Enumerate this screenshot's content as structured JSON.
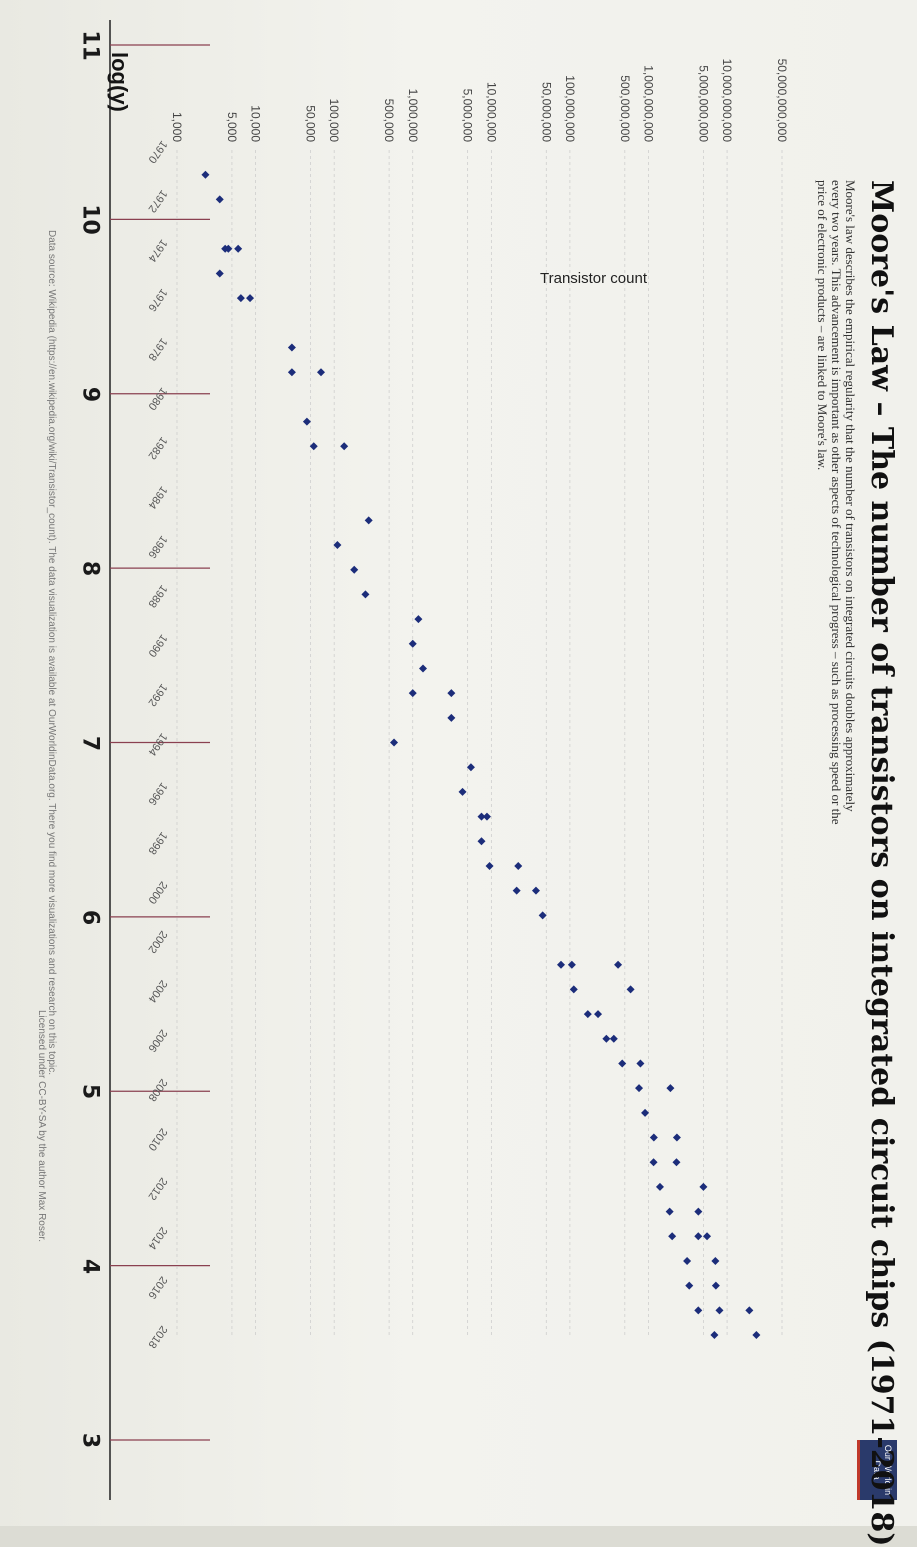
{
  "logscale": {
    "title": "log(y)",
    "ticks": [
      "11",
      "10",
      "9",
      "8",
      "7",
      "6",
      "5",
      "4",
      "3"
    ]
  },
  "header": {
    "owid_logo": "Our World in Data",
    "title": "Moore's Law – The number of transistors on integrated circuit chips (1971-2018)",
    "subtitle": "Moore's law describes the empirical regularity that the number of transistors on integrated circuits doubles approximately every two years. This advancement is important as other aspects of technological progress – such as processing speed or the price of electronic products – are linked to Moore's law."
  },
  "footer": {
    "sources": "Data source: Wikipedia (https://en.wikipedia.org/wiki/Transistor_count). The data visualization is available at OurWorldinData.org. There you find more visualizations and research on this topic.",
    "license": "Licensed under CC-BY-SA by the author Max Roser."
  },
  "colors": {
    "point": "#1c2d7a",
    "grid": "#c9c9c9",
    "logline": "#8a4050"
  },
  "chart_data": {
    "type": "scatter",
    "title": "Moore's Law – The number of transistors on integrated circuit chips (1971-2018)",
    "xlabel": "",
    "ylabel": "Transistor count",
    "log_scale_y": true,
    "ylim": [
      1000,
      50000000000
    ],
    "xlim": [
      1970,
      2018
    ],
    "grid": true,
    "y_ticks": [
      "1,000",
      "5,000",
      "10,000",
      "50,000",
      "100,000",
      "500,000",
      "1,000,000",
      "5,000,000",
      "10,000,000",
      "50,000,000",
      "100,000,000",
      "500,000,000",
      "1,000,000,000",
      "5,000,000,000",
      "10,000,000,000",
      "50,000,000,000"
    ],
    "y_tick_values": [
      1000,
      5000,
      10000,
      50000,
      100000,
      500000,
      1000000,
      5000000,
      10000000,
      50000000,
      100000000,
      500000000,
      1000000000,
      5000000000,
      10000000000,
      50000000000
    ],
    "x_ticks": [
      "1970",
      "1972",
      "1974",
      "1976",
      "1978",
      "1980",
      "1982",
      "1984",
      "1986",
      "1988",
      "1990",
      "1992",
      "1994",
      "1996",
      "1998",
      "2000",
      "2002",
      "2004",
      "2006",
      "2008",
      "2010",
      "2012",
      "2014",
      "2016",
      "2018"
    ],
    "x_tick_values": [
      1970,
      1972,
      1974,
      1976,
      1978,
      1980,
      1982,
      1984,
      1986,
      1988,
      1990,
      1992,
      1994,
      1996,
      1998,
      2000,
      2002,
      2004,
      2006,
      2008,
      2010,
      2012,
      2014,
      2016,
      2018
    ],
    "points": [
      {
        "x": 1971,
        "y": 2300
      },
      {
        "x": 1972,
        "y": 3500
      },
      {
        "x": 1974,
        "y": 4100
      },
      {
        "x": 1974,
        "y": 6000
      },
      {
        "x": 1974,
        "y": 4500
      },
      {
        "x": 1975,
        "y": 3500
      },
      {
        "x": 1976,
        "y": 6500
      },
      {
        "x": 1976,
        "y": 8500
      },
      {
        "x": 1978,
        "y": 29000
      },
      {
        "x": 1979,
        "y": 29000
      },
      {
        "x": 1979,
        "y": 68000
      },
      {
        "x": 1981,
        "y": 45000
      },
      {
        "x": 1982,
        "y": 134000
      },
      {
        "x": 1982,
        "y": 55000
      },
      {
        "x": 1985,
        "y": 275000
      },
      {
        "x": 1986,
        "y": 110000
      },
      {
        "x": 1987,
        "y": 180000
      },
      {
        "x": 1988,
        "y": 250000
      },
      {
        "x": 1989,
        "y": 1180000
      },
      {
        "x": 1990,
        "y": 1000000
      },
      {
        "x": 1991,
        "y": 1350000
      },
      {
        "x": 1992,
        "y": 1000000
      },
      {
        "x": 1992,
        "y": 3100000
      },
      {
        "x": 1993,
        "y": 3100000
      },
      {
        "x": 1994,
        "y": 578000
      },
      {
        "x": 1995,
        "y": 5500000
      },
      {
        "x": 1996,
        "y": 4300000
      },
      {
        "x": 1997,
        "y": 7500000
      },
      {
        "x": 1997,
        "y": 8800000
      },
      {
        "x": 1998,
        "y": 7500000
      },
      {
        "x": 1999,
        "y": 9500000
      },
      {
        "x": 1999,
        "y": 22000000
      },
      {
        "x": 2000,
        "y": 37000000
      },
      {
        "x": 2000,
        "y": 21000000
      },
      {
        "x": 2001,
        "y": 45000000
      },
      {
        "x": 2003,
        "y": 77000000
      },
      {
        "x": 2003,
        "y": 105900000
      },
      {
        "x": 2003,
        "y": 410000000
      },
      {
        "x": 2004,
        "y": 112000000
      },
      {
        "x": 2004,
        "y": 592000000
      },
      {
        "x": 2005,
        "y": 169000000
      },
      {
        "x": 2005,
        "y": 228000000
      },
      {
        "x": 2006,
        "y": 291000000
      },
      {
        "x": 2006,
        "y": 362000000
      },
      {
        "x": 2007,
        "y": 463000000
      },
      {
        "x": 2007,
        "y": 789000000
      },
      {
        "x": 2008,
        "y": 758000000
      },
      {
        "x": 2008,
        "y": 1900000000
      },
      {
        "x": 2009,
        "y": 904000000
      },
      {
        "x": 2010,
        "y": 1170000000
      },
      {
        "x": 2010,
        "y": 2300000000
      },
      {
        "x": 2011,
        "y": 1160000000
      },
      {
        "x": 2011,
        "y": 2270000000
      },
      {
        "x": 2012,
        "y": 1400000000
      },
      {
        "x": 2012,
        "y": 5000000000
      },
      {
        "x": 2013,
        "y": 1860000000
      },
      {
        "x": 2013,
        "y": 4310000000
      },
      {
        "x": 2014,
        "y": 2000000000
      },
      {
        "x": 2014,
        "y": 4300000000
      },
      {
        "x": 2014,
        "y": 5560000000
      },
      {
        "x": 2015,
        "y": 3100000000
      },
      {
        "x": 2015,
        "y": 7100000000
      },
      {
        "x": 2016,
        "y": 3300000000
      },
      {
        "x": 2016,
        "y": 7200000000
      },
      {
        "x": 2017,
        "y": 4300000000
      },
      {
        "x": 2017,
        "y": 19200000000
      },
      {
        "x": 2017,
        "y": 8000000000
      },
      {
        "x": 2018,
        "y": 6900000000
      },
      {
        "x": 2018,
        "y": 23600000000
      }
    ]
  }
}
